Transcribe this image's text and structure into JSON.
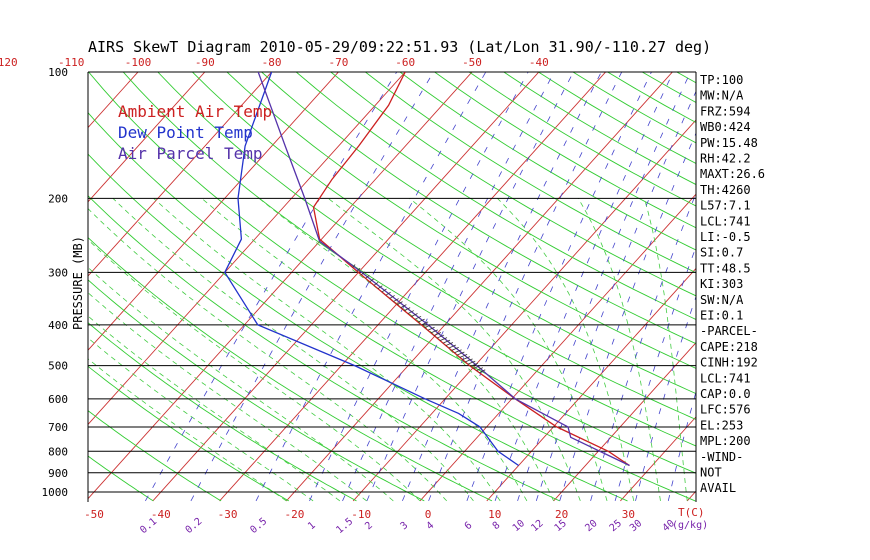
{
  "title": "AIRS SkewT Diagram 2010-05-29/09:22:51.93 (Lat/Lon 31.90/-110.27 deg)",
  "legend": [
    {
      "label": "Ambient Air Temp",
      "color": "#cc2020"
    },
    {
      "label": "Dew Point Temp",
      "color": "#2233cc"
    },
    {
      "label": "Air Parcel Temp",
      "color": "#5533aa"
    }
  ],
  "colors": {
    "temp_lines": "#cc3333",
    "dry_adiabats": "#33cc33",
    "moist_adiabats": "#44cc44",
    "mixing_ratio": "#4444cc",
    "isobars": "#000000",
    "axis_labels": "#cc2020",
    "mixing_labels": "#7722aa"
  },
  "y_axis_label": "PRESSURE (MB)",
  "x_axis_unit_label": "T(C)",
  "mixing_ratio_unit_label": "(g/kg)",
  "stats": [
    "TP:100",
    "MW:N/A",
    "FRZ:594",
    "WB0:424",
    "PW:15.48",
    "RH:42.2",
    "MAXT:26.6",
    "TH:4260",
    "L57:7.1",
    "LCL:741",
    "LI:-0.5",
    "SI:0.7",
    "TT:48.5",
    "KI:303",
    "SW:N/A",
    "EI:0.1",
    "-PARCEL-",
    "CAPE:218",
    "CINH:192",
    "LCL:741",
    "CAP:0.0",
    "LFC:576",
    "EL:253",
    "MPL:200",
    "-WIND-",
    "NOT",
    "AVAIL"
  ],
  "chart_data": {
    "type": "line",
    "chart_kind": "skew-t log-p",
    "title": "AIRS SkewT Diagram 2010-05-29/09:22:51.93 (Lat/Lon 31.90/-110.27 deg)",
    "ylabel": "PRESSURE (MB)",
    "xlabel": "T(C)",
    "y_scale": "log",
    "ylim": [
      1000,
      100
    ],
    "pressure_ticks": [
      100,
      200,
      300,
      400,
      500,
      600,
      700,
      800,
      900,
      1000
    ],
    "bottom_temp_ticks": [
      -50,
      -40,
      -30,
      -20,
      -10,
      0,
      10,
      20,
      30
    ],
    "top_temp_ticks": [
      -120,
      -110,
      -100,
      -90,
      -80,
      -70,
      -60,
      -50,
      -40
    ],
    "mixing_ratio_ticks": [
      "0.1",
      "0.2",
      "0.5",
      "1",
      "1.5",
      "2",
      "3",
      "4",
      "6",
      "8",
      "10",
      "12",
      "15",
      "20",
      "25",
      "30",
      "40"
    ],
    "mixing_ratio_values": [
      0.1,
      0.2,
      0.5,
      1,
      1.5,
      2,
      3,
      4,
      6,
      8,
      10,
      12,
      15,
      20,
      25,
      30,
      40
    ],
    "series": [
      {
        "name": "Ambient Air Temp",
        "color": "#cc2020",
        "points": [
          [
            865,
            26.6
          ],
          [
            800,
            21.5
          ],
          [
            700,
            10.5
          ],
          [
            600,
            0.5
          ],
          [
            500,
            -10.8
          ],
          [
            400,
            -23.5
          ],
          [
            300,
            -40
          ],
          [
            250,
            -50.3
          ],
          [
            210,
            -55.5
          ],
          [
            180,
            -56.5
          ],
          [
            150,
            -57
          ],
          [
            120,
            -58
          ],
          [
            100,
            -60
          ]
        ]
      },
      {
        "name": "Dew Point Temp",
        "color": "#2233cc",
        "points": [
          [
            865,
            10
          ],
          [
            800,
            5
          ],
          [
            700,
            -1
          ],
          [
            650,
            -6
          ],
          [
            600,
            -13
          ],
          [
            500,
            -28
          ],
          [
            400,
            -48
          ],
          [
            300,
            -60
          ],
          [
            250,
            -62
          ],
          [
            200,
            -68
          ],
          [
            150,
            -74
          ],
          [
            100,
            -80
          ]
        ]
      },
      {
        "name": "Air Parcel Temp",
        "color": "#5533aa",
        "points": [
          [
            865,
            26.6
          ],
          [
            741,
            14
          ],
          [
            700,
            12.2
          ],
          [
            600,
            0.5
          ],
          [
            500,
            -9.7
          ],
          [
            400,
            -22.5
          ],
          [
            300,
            -39.5
          ],
          [
            253,
            -50
          ],
          [
            200,
            -58
          ],
          [
            150,
            -68
          ],
          [
            100,
            -82
          ]
        ]
      }
    ],
    "grid": true
  }
}
